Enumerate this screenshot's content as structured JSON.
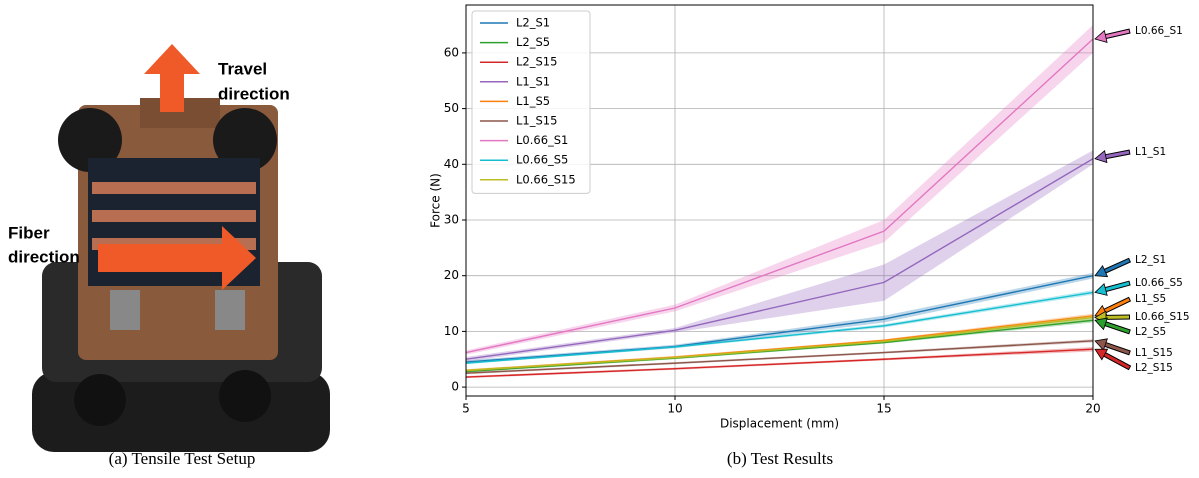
{
  "photo": {
    "travel_label": [
      "Travel",
      "direction"
    ],
    "fiber_label": [
      "Fiber",
      "direction"
    ],
    "caption": "(a) Tensile Test Setup"
  },
  "chart_caption": "(b) Test Results",
  "chart_data": {
    "type": "line",
    "x_label": "Displacement (mm)",
    "y_label": "Force (N)",
    "x": [
      5,
      10,
      15,
      20
    ],
    "xlim": [
      5,
      20
    ],
    "xticks": [
      5,
      10,
      15,
      20
    ],
    "ylim": [
      -1.6,
      68.6
    ],
    "yticks": [
      0,
      10,
      20,
      30,
      40,
      50,
      60
    ],
    "grid": true,
    "legend": "upper left",
    "series": [
      {
        "name": "L2_S1",
        "color": "#1f77b4",
        "values": [
          4.5,
          7.3,
          12.2,
          20.0
        ],
        "lower": [
          4.2,
          7.0,
          11.6,
          19.5
        ],
        "upper": [
          4.8,
          7.6,
          12.8,
          20.5
        ]
      },
      {
        "name": "L2_S5",
        "color": "#2ca02c",
        "values": [
          2.8,
          5.2,
          8.0,
          12.0
        ],
        "lower": [
          2.6,
          5.0,
          7.8,
          11.6
        ],
        "upper": [
          3.0,
          5.4,
          8.2,
          12.4
        ]
      },
      {
        "name": "L2_S15",
        "color": "#d62728",
        "values": [
          1.8,
          3.3,
          5.0,
          6.8
        ],
        "lower": [
          1.6,
          3.1,
          4.8,
          6.4
        ],
        "upper": [
          2.0,
          3.5,
          5.2,
          7.2
        ]
      },
      {
        "name": "L1_S1",
        "color": "#9467bd",
        "values": [
          5.0,
          10.2,
          18.8,
          41.0
        ],
        "lower": [
          4.6,
          9.8,
          15.5,
          40.0
        ],
        "upper": [
          5.4,
          10.6,
          22.0,
          42.5
        ]
      },
      {
        "name": "L1_S5",
        "color": "#ff7f0e",
        "values": [
          3.0,
          5.4,
          8.4,
          12.8
        ],
        "lower": [
          2.8,
          5.2,
          8.2,
          12.4
        ],
        "upper": [
          3.2,
          5.6,
          8.6,
          13.2
        ]
      },
      {
        "name": "L1_S15",
        "color": "#8c564b",
        "values": [
          2.5,
          4.3,
          6.2,
          8.3
        ],
        "lower": [
          2.3,
          4.1,
          6.0,
          8.0
        ],
        "upper": [
          2.7,
          4.5,
          6.4,
          8.6
        ]
      },
      {
        "name": "L0.66_S1",
        "color": "#e377c2",
        "values": [
          6.2,
          14.2,
          28.0,
          62.5
        ],
        "lower": [
          5.8,
          13.6,
          26.0,
          60.0
        ],
        "upper": [
          6.6,
          14.8,
          30.0,
          65.0
        ]
      },
      {
        "name": "L0.66_S5",
        "color": "#17becf",
        "values": [
          4.3,
          7.2,
          11.0,
          17.0
        ],
        "lower": [
          4.1,
          7.0,
          10.7,
          16.6
        ],
        "upper": [
          4.5,
          7.4,
          11.3,
          17.4
        ]
      },
      {
        "name": "L0.66_S15",
        "color": "#bcbd22",
        "values": [
          3.0,
          5.3,
          8.2,
          12.5
        ],
        "lower": [
          2.8,
          5.1,
          8.0,
          12.1
        ],
        "upper": [
          3.2,
          5.5,
          8.4,
          12.9
        ]
      }
    ]
  }
}
